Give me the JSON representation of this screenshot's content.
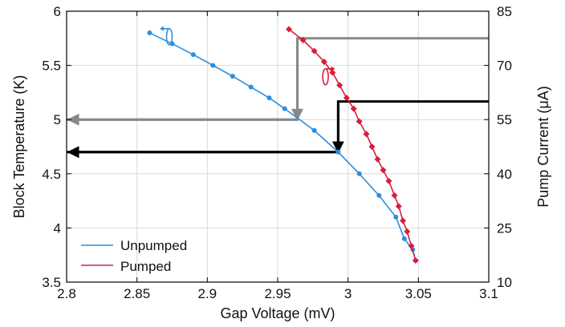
{
  "chart_data": {
    "type": "line",
    "title": "",
    "xlabel": "Gap Voltage (mV)",
    "ylabel": "Block Temperature (K)",
    "y2label": "Pump Current (μA)",
    "xlim": [
      2.8,
      3.1
    ],
    "ylim": [
      3.5,
      6
    ],
    "y2lim": [
      10,
      85
    ],
    "x_ticks": [
      "2.8",
      "2.85",
      "2.9",
      "2.95",
      "3",
      "3.05",
      "3.1"
    ],
    "y_ticks": [
      "3.5",
      "4",
      "4.5",
      "5",
      "5.5",
      "6"
    ],
    "y2_ticks": [
      "10",
      "25",
      "40",
      "55",
      "70",
      "85"
    ],
    "grid": true,
    "legend_position": "bottom-left",
    "series": [
      {
        "name": "Unpumped",
        "axis": "left",
        "color": "#2b8fe0",
        "marker": "circle",
        "x": [
          2.859,
          2.875,
          2.89,
          2.904,
          2.918,
          2.931,
          2.944,
          2.955,
          2.976,
          2.993,
          3.008,
          3.022,
          3.034,
          3.04,
          3.046,
          3.048
        ],
        "y": [
          5.8,
          5.7,
          5.6,
          5.5,
          5.4,
          5.3,
          5.2,
          5.1,
          4.9,
          4.7,
          4.5,
          4.3,
          4.1,
          3.9,
          3.8,
          3.7
        ]
      },
      {
        "name": "Pumped",
        "axis": "right",
        "color": "#d81e3c",
        "marker": "diamond",
        "x": [
          2.958,
          2.968,
          2.976,
          2.983,
          2.989,
          2.994,
          2.999,
          3.004,
          3.008,
          3.013,
          3.017,
          3.021,
          3.025,
          3.029,
          3.033,
          3.036,
          3.039,
          3.042,
          3.045,
          3.048
        ],
        "y": [
          80.0,
          77.0,
          74.0,
          71.0,
          68.0,
          64.5,
          61.0,
          58.0,
          54.5,
          51.0,
          47.5,
          44.0,
          41.0,
          38.0,
          34.0,
          31.0,
          27.0,
          24.0,
          20.0,
          16.0
        ]
      }
    ],
    "annotations": [
      {
        "color": "#888888",
        "path": [
          {
            "axis": "right",
            "x": 3.1,
            "y": 77.5
          },
          {
            "axis": "right",
            "x": 2.964,
            "y": 77.5
          },
          {
            "axis": "left",
            "x": 2.964,
            "y": 5.0
          },
          {
            "axis": "left",
            "x": 2.8,
            "y": 5.0
          }
        ]
      },
      {
        "color": "#000000",
        "path": [
          {
            "axis": "right",
            "x": 3.1,
            "y": 60.0
          },
          {
            "axis": "right",
            "x": 2.993,
            "y": 60.0
          },
          {
            "axis": "left",
            "x": 2.993,
            "y": 4.7
          },
          {
            "axis": "left",
            "x": 2.8,
            "y": 4.7
          }
        ]
      }
    ],
    "axis_indicators": [
      {
        "series": 0,
        "direction": "left",
        "x": 2.873,
        "y": 5.78
      },
      {
        "series": 1,
        "direction": "right",
        "x": 2.984,
        "y": 5.41
      }
    ]
  }
}
